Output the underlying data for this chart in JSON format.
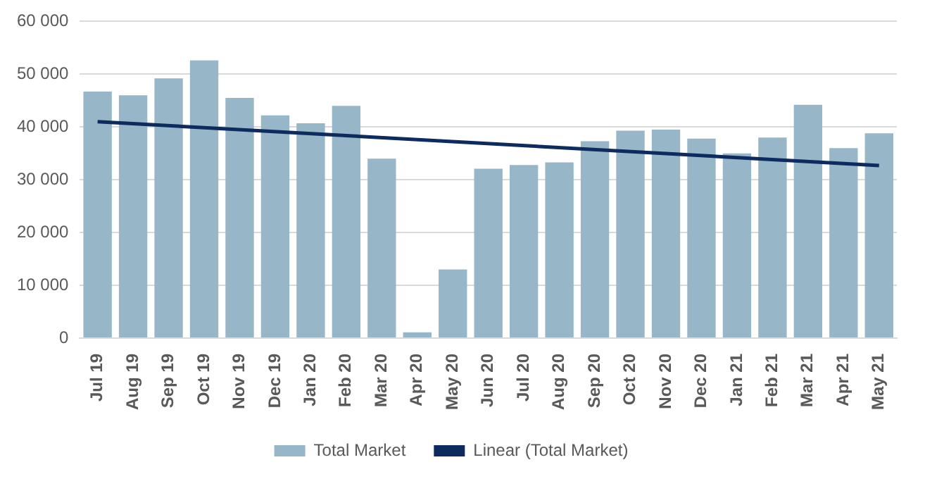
{
  "chart_data": {
    "type": "bar",
    "categories": [
      "Jul 19",
      "Aug 19",
      "Sep 19",
      "Oct 19",
      "Nov 19",
      "Dec 19",
      "Jan 20",
      "Feb 20",
      "Mar 20",
      "Apr 20",
      "May 20",
      "Jun 20",
      "Jul 20",
      "Aug 20",
      "Sep 20",
      "Oct 20",
      "Nov 20",
      "Dec 20",
      "Jan 21",
      "Feb 21",
      "Mar 21",
      "Apr 21",
      "May 21"
    ],
    "series": [
      {
        "name": "Total Market",
        "color": "#97b6c8",
        "values": [
          46700,
          46000,
          49200,
          52600,
          45500,
          42200,
          40700,
          44000,
          34000,
          1100,
          13000,
          32100,
          32800,
          33300,
          37300,
          39300,
          39500,
          37800,
          35000,
          38000,
          44200,
          36000,
          38800
        ]
      },
      {
        "name": "Linear (Total Market)",
        "type": "line",
        "color": "#0d2b5e",
        "x": [
          "Jul 19",
          "May 21"
        ],
        "values": [
          41000,
          32700
        ]
      }
    ],
    "ylim": [
      0,
      60000
    ],
    "yticks": [
      {
        "value": 0,
        "label": "0"
      },
      {
        "value": 10000,
        "label": "10 000"
      },
      {
        "value": 20000,
        "label": "20 000"
      },
      {
        "value": 30000,
        "label": "30 000"
      },
      {
        "value": 40000,
        "label": "40 000"
      },
      {
        "value": 50000,
        "label": "50 000"
      },
      {
        "value": 60000,
        "label": "60 000"
      }
    ],
    "grid": "y",
    "legend": "bottom",
    "marker": "none"
  }
}
